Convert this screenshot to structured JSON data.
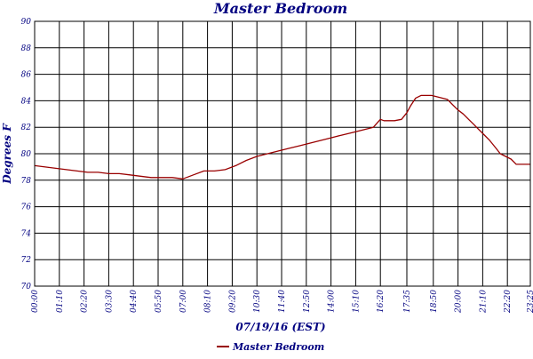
{
  "chart_data": {
    "type": "line",
    "title": "Master Bedroom",
    "xlabel": "07/19/16 (EST)",
    "ylabel": "Degrees F",
    "ylim": [
      70,
      90
    ],
    "yticks": [
      70,
      72,
      74,
      76,
      78,
      80,
      82,
      84,
      86,
      88,
      90
    ],
    "xlim_minutes": [
      0,
      1405
    ],
    "xticks": [
      "00:00",
      "01:10",
      "02:20",
      "03:30",
      "04:40",
      "05:50",
      "07:00",
      "08:10",
      "09:20",
      "10:30",
      "11:40",
      "12:50",
      "14:00",
      "15:10",
      "16:20",
      "17:35",
      "18:50",
      "20:00",
      "21:10",
      "22:20",
      "23:25"
    ],
    "grid": true,
    "legend_position": "bottom-center",
    "colors": {
      "series": "#990000",
      "text": "#000080",
      "grid": "#000000"
    },
    "series": [
      {
        "name": "Master Bedroom",
        "x": [
          "00:00",
          "00:30",
          "01:00",
          "01:30",
          "02:00",
          "02:30",
          "03:00",
          "03:30",
          "04:00",
          "04:30",
          "05:00",
          "05:30",
          "06:00",
          "06:30",
          "07:00",
          "07:30",
          "08:00",
          "08:30",
          "09:00",
          "09:30",
          "10:00",
          "10:30",
          "11:00",
          "11:30",
          "12:00",
          "12:30",
          "13:00",
          "13:30",
          "14:00",
          "14:30",
          "15:00",
          "15:30",
          "16:00",
          "16:20",
          "16:30",
          "17:00",
          "17:20",
          "17:35",
          "17:45",
          "18:00",
          "18:15",
          "18:30",
          "18:45",
          "19:00",
          "19:30",
          "19:45",
          "20:00",
          "20:15",
          "20:30",
          "20:45",
          "21:00",
          "21:15",
          "21:30",
          "21:45",
          "22:00",
          "22:15",
          "22:30",
          "22:45",
          "23:00",
          "23:15",
          "23:25"
        ],
        "y": [
          79.1,
          79.0,
          78.9,
          78.8,
          78.7,
          78.6,
          78.6,
          78.5,
          78.5,
          78.4,
          78.3,
          78.2,
          78.2,
          78.2,
          78.1,
          78.4,
          78.7,
          78.7,
          78.8,
          79.1,
          79.5,
          79.8,
          80.0,
          80.2,
          80.4,
          80.6,
          80.8,
          81.0,
          81.2,
          81.4,
          81.6,
          81.8,
          82.0,
          82.6,
          82.5,
          82.5,
          82.6,
          83.1,
          83.6,
          84.2,
          84.4,
          84.4,
          84.4,
          84.3,
          84.1,
          83.7,
          83.3,
          83.0,
          82.6,
          82.2,
          81.8,
          81.4,
          81.0,
          80.5,
          80.0,
          79.8,
          79.6,
          79.2,
          79.2,
          79.2,
          79.2
        ]
      }
    ]
  }
}
